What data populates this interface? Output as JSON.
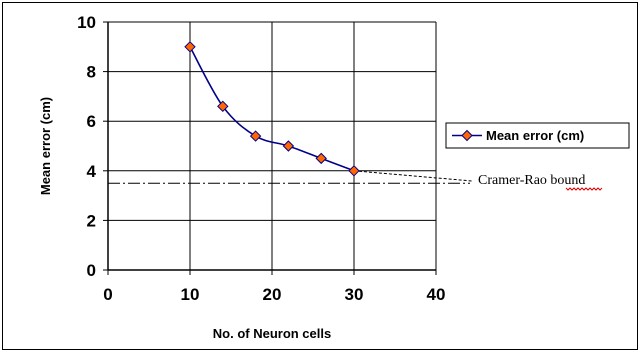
{
  "chart_data": {
    "type": "line",
    "x": [
      10,
      14,
      18,
      22,
      26,
      30
    ],
    "series": [
      {
        "name": "Mean error (cm)",
        "values": [
          9.0,
          6.6,
          5.4,
          5.0,
          4.5,
          4.0
        ]
      }
    ],
    "xlabel": "No. of Neuron cells",
    "ylabel": "Mean error (cm)",
    "xlim": [
      0,
      40
    ],
    "ylim": [
      0,
      10
    ],
    "xticks": [
      0,
      10,
      20,
      30,
      40
    ],
    "yticks": [
      0,
      2,
      4,
      6,
      8,
      10
    ],
    "grid": true,
    "legend_position": "right",
    "reference_line": {
      "label": "Cramer-Rao bound",
      "y": 3.5
    },
    "colors": {
      "line": "#00008b",
      "marker_fill": "#ff6600",
      "marker_stroke": "#00008b"
    }
  }
}
